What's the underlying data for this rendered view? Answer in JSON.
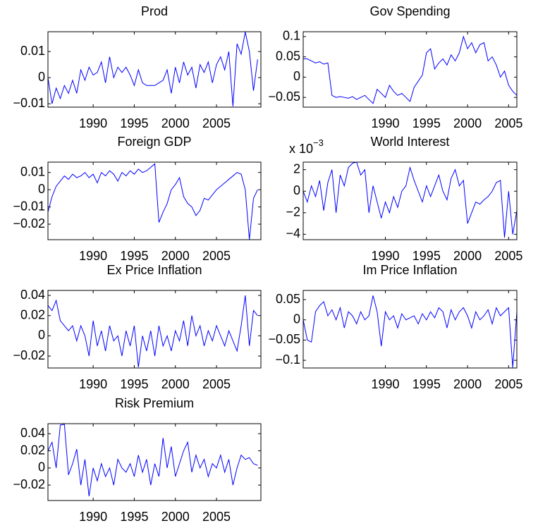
{
  "chart_data": [
    {
      "type": "line",
      "title": "Prod",
      "color": "#0000ff",
      "x": [
        1984.5,
        1985,
        1985.5,
        1986,
        1986.5,
        1987,
        1987.5,
        1988,
        1988.5,
        1989,
        1989.5,
        1990,
        1990.5,
        1991,
        1991.5,
        1992,
        1992.5,
        1993,
        1993.5,
        1994,
        1994.5,
        1995,
        1995.5,
        1996,
        1996.5,
        1997,
        1997.5,
        1998,
        1998.5,
        1999,
        1999.5,
        2000,
        2000.5,
        2001,
        2001.5,
        2002,
        2002.5,
        2003,
        2003.5,
        2004,
        2004.5,
        2005,
        2005.5,
        2006,
        2006.5,
        2007,
        2007.5,
        2008,
        2008.5,
        2009,
        2009.5,
        2010
      ],
      "values": [
        0.0,
        -0.01,
        -0.004,
        -0.008,
        -0.003,
        -0.006,
        -0.001,
        -0.006,
        0.003,
        -0.001,
        0.004,
        0.001,
        0.002,
        0.006,
        -0.002,
        0.008,
        0.0,
        0.004,
        0.002,
        0.004,
        0.001,
        -0.003,
        0.003,
        -0.002,
        -0.003,
        -0.003,
        -0.003,
        -0.002,
        -0.001,
        0.003,
        -0.006,
        0.004,
        -0.002,
        0.006,
        0.001,
        0.004,
        -0.004,
        0.005,
        0.002,
        0.006,
        -0.002,
        0.005,
        0.008,
        0.003,
        0.01,
        -0.011,
        0.013,
        0.009,
        0.0175,
        0.01,
        -0.005,
        0.007
      ],
      "xlim": [
        1984.5,
        2010.4
      ],
      "xticks": [
        1990,
        1995,
        2000,
        2005
      ],
      "ylim": [
        -0.0113,
        0.0176
      ],
      "yticks": [
        {
          "value": -0.01,
          "label": "−0.01"
        },
        0,
        0.01
      ]
    },
    {
      "type": "line",
      "title": "Gov Spending",
      "color": "#0000ff",
      "x": [
        1980,
        1980.5,
        1981,
        1981.5,
        1982,
        1982.5,
        1983,
        1983.5,
        1984,
        1984.5,
        1985,
        1985.5,
        1986,
        1986.5,
        1987,
        1987.5,
        1988,
        1988.5,
        1989,
        1989.5,
        1990,
        1990.5,
        1991,
        1991.5,
        1992,
        1992.5,
        1993,
        1993.5,
        1994,
        1994.5,
        1995,
        1995.5,
        1996,
        1996.5,
        1997,
        1997.5,
        1998,
        1998.5,
        1999,
        1999.5,
        2000,
        2000.5,
        2001,
        2001.5,
        2002,
        2002.5,
        2003,
        2003.5,
        2004,
        2004.5,
        2005,
        2005.5,
        2006
      ],
      "values": [
        0.045,
        0.045,
        0.04,
        0.035,
        0.038,
        0.032,
        0.035,
        -0.045,
        -0.05,
        -0.048,
        -0.05,
        -0.052,
        -0.048,
        -0.055,
        -0.05,
        -0.045,
        -0.055,
        -0.065,
        -0.03,
        -0.04,
        -0.05,
        -0.02,
        -0.035,
        -0.045,
        -0.04,
        -0.05,
        -0.06,
        -0.025,
        -0.01,
        0.005,
        0.06,
        0.07,
        0.02,
        0.035,
        0.045,
        0.03,
        0.055,
        0.04,
        0.06,
        0.1,
        0.07,
        0.085,
        0.06,
        0.08,
        0.085,
        0.04,
        0.05,
        0.03,
        0.0,
        0.015,
        -0.02,
        -0.035,
        -0.045
      ],
      "xlim": [
        1980,
        2006
      ],
      "xticks": [
        1990,
        1995,
        2000,
        2005
      ],
      "ylim": [
        -0.074,
        0.112
      ],
      "yticks": [
        {
          "value": -0.05,
          "label": "−0.05"
        },
        0,
        0.05,
        0.1
      ]
    },
    {
      "type": "line",
      "title": "Foreign GDP",
      "color": "#0000ff",
      "x": [
        1984.5,
        1985,
        1985.5,
        1986,
        1986.5,
        1987,
        1987.5,
        1988,
        1988.5,
        1989,
        1989.5,
        1990,
        1990.5,
        1991,
        1991.5,
        1992,
        1992.5,
        1993,
        1993.5,
        1994,
        1994.5,
        1995,
        1995.5,
        1996,
        1996.5,
        1997,
        1997.5,
        1998,
        1998.5,
        1999,
        1999.5,
        2000,
        2000.5,
        2001,
        2001.5,
        2002,
        2002.5,
        2003,
        2003.5,
        2004,
        2004.5,
        2005,
        2005.5,
        2006,
        2006.5,
        2007,
        2007.5,
        2008,
        2008.5,
        2009,
        2009.5,
        2010
      ],
      "values": [
        -0.013,
        -0.004,
        0.002,
        0.005,
        0.008,
        0.006,
        0.009,
        0.007,
        0.008,
        0.01,
        0.007,
        0.009,
        0.004,
        0.01,
        0.008,
        0.011,
        0.009,
        0.005,
        0.01,
        0.008,
        0.011,
        0.009,
        0.012,
        0.01,
        0.011,
        0.013,
        0.015,
        -0.019,
        -0.013,
        -0.008,
        0.0,
        0.003,
        0.007,
        -0.004,
        -0.008,
        -0.01,
        -0.015,
        -0.012,
        -0.005,
        -0.006,
        -0.003,
        0.0,
        0.002,
        0.004,
        0.006,
        0.008,
        0.01,
        0.009,
        0.0,
        -0.029,
        -0.005,
        0.0
      ],
      "xlim": [
        1984.5,
        2010.4
      ],
      "xticks": [
        1990,
        1995,
        2000,
        2005
      ],
      "ylim": [
        -0.029,
        0.016
      ],
      "yticks": [
        {
          "value": -0.02,
          "label": "−0.02"
        },
        {
          "value": -0.01,
          "label": "−0.01"
        },
        0,
        0.01
      ]
    },
    {
      "type": "line",
      "title": "World Interest",
      "color": "#0000ff",
      "y_exponent": {
        "base": "x 10",
        "power": "−3"
      },
      "x": [
        1980,
        1980.5,
        1981,
        1981.5,
        1982,
        1982.5,
        1983,
        1983.5,
        1984,
        1984.5,
        1985,
        1985.5,
        1986,
        1986.5,
        1987,
        1987.5,
        1988,
        1988.5,
        1989,
        1989.5,
        1990,
        1990.5,
        1991,
        1991.5,
        1992,
        1992.5,
        1993,
        1993.5,
        1994,
        1994.5,
        1995,
        1995.5,
        1996,
        1996.5,
        1997,
        1997.5,
        1998,
        1998.5,
        1999,
        1999.5,
        2000,
        2000.5,
        2001,
        2001.5,
        2002,
        2002.5,
        2003,
        2003.5,
        2004,
        2004.5,
        2005,
        2005.5,
        2006
      ],
      "values": [
        0.0,
        -1.0,
        0.5,
        -0.5,
        1.0,
        -1.8,
        0.8,
        2.0,
        -2.0,
        1.5,
        0.5,
        2.2,
        2.6,
        2.7,
        1.5,
        2.0,
        -2.0,
        0.5,
        -1.0,
        -2.5,
        -1.0,
        -2.0,
        -0.5,
        -1.5,
        0.0,
        0.5,
        2.2,
        1.0,
        0.0,
        -1.0,
        0.5,
        -0.5,
        0.5,
        1.5,
        0.0,
        -0.8,
        1.2,
        2.0,
        0.5,
        1.0,
        -3.0,
        -2.0,
        -1.0,
        -1.2,
        -0.8,
        -0.5,
        0.0,
        0.8,
        1.0,
        -4.3,
        0.0,
        -4.0,
        -1.8
      ],
      "xlim": [
        1980,
        2006
      ],
      "xticks": [
        1990,
        1995,
        2000,
        2005
      ],
      "ylim": [
        -4.5,
        2.7
      ],
      "yticks": [
        {
          "value": -4,
          "label": "−4"
        },
        {
          "value": -2,
          "label": "−2"
        },
        0,
        2
      ]
    },
    {
      "type": "line",
      "title": "Ex Price Inflation",
      "color": "#0000ff",
      "x": [
        1984.5,
        1985,
        1985.5,
        1986,
        1986.5,
        1987,
        1987.5,
        1988,
        1988.5,
        1989,
        1989.5,
        1990,
        1990.5,
        1991,
        1991.5,
        1992,
        1992.5,
        1993,
        1993.5,
        1994,
        1994.5,
        1995,
        1995.5,
        1996,
        1996.5,
        1997,
        1997.5,
        1998,
        1998.5,
        1999,
        1999.5,
        2000,
        2000.5,
        2001,
        2001.5,
        2002,
        2002.5,
        2003,
        2003.5,
        2004,
        2004.5,
        2005,
        2005.5,
        2006,
        2006.5,
        2007,
        2007.5,
        2008,
        2008.5,
        2009,
        2009.5,
        2010
      ],
      "values": [
        0.03,
        0.025,
        0.035,
        0.015,
        0.01,
        0.005,
        0.01,
        -0.005,
        0.01,
        0.0,
        -0.02,
        0.015,
        -0.01,
        0.005,
        -0.015,
        0.01,
        -0.005,
        0.0,
        -0.02,
        0.005,
        -0.01,
        0.01,
        -0.031,
        0.0,
        -0.015,
        0.005,
        -0.02,
        0.01,
        -0.01,
        0.0,
        -0.015,
        0.005,
        -0.005,
        0.015,
        -0.01,
        0.02,
        0.0,
        0.01,
        -0.01,
        0.005,
        -0.005,
        0.01,
        0.0,
        -0.01,
        0.005,
        -0.005,
        -0.015,
        0.01,
        0.04,
        -0.01,
        0.025,
        0.02
      ],
      "xlim": [
        1984.5,
        2010.4
      ],
      "xticks": [
        1990,
        1995,
        2000,
        2005
      ],
      "ylim": [
        -0.0318,
        0.0449
      ],
      "yticks": [
        {
          "value": -0.02,
          "label": "−0.02"
        },
        0,
        0.02,
        0.04
      ]
    },
    {
      "type": "line",
      "title": "Im Price Inflation",
      "color": "#0000ff",
      "x": [
        1980,
        1980.5,
        1981,
        1981.5,
        1982,
        1982.5,
        1983,
        1983.5,
        1984,
        1984.5,
        1985,
        1985.5,
        1986,
        1986.5,
        1987,
        1987.5,
        1988,
        1988.5,
        1989,
        1989.5,
        1990,
        1990.5,
        1991,
        1991.5,
        1992,
        1992.5,
        1993,
        1993.5,
        1994,
        1994.5,
        1995,
        1995.5,
        1996,
        1996.5,
        1997,
        1997.5,
        1998,
        1998.5,
        1999,
        1999.5,
        2000,
        2000.5,
        2001,
        2001.5,
        2002,
        2002.5,
        2003,
        2003.5,
        2004,
        2004.5,
        2005,
        2005.5,
        2006
      ],
      "values": [
        0.0,
        -0.05,
        -0.055,
        0.02,
        0.035,
        0.045,
        0.01,
        0.025,
        0.0,
        0.03,
        -0.02,
        0.02,
        0.01,
        -0.01,
        0.02,
        0.0,
        0.01,
        0.06,
        0.02,
        -0.065,
        0.02,
        0.0,
        0.01,
        -0.02,
        0.015,
        0.0,
        0.005,
        0.01,
        -0.01,
        0.015,
        0.0,
        0.02,
        0.005,
        0.03,
        0.02,
        -0.02,
        0.025,
        0.0,
        0.02,
        0.03,
        0.01,
        -0.02,
        0.02,
        0.0,
        0.01,
        0.025,
        -0.01,
        0.03,
        0.01,
        0.02,
        0.03,
        -0.118,
        0.02
      ],
      "xlim": [
        1980,
        2006
      ],
      "xticks": [
        1990,
        1995,
        2000,
        2005
      ],
      "ylim": [
        -0.119,
        0.0727
      ],
      "yticks": [
        {
          "value": -0.1,
          "label": "−0.1"
        },
        {
          "value": -0.05,
          "label": "−0.05"
        },
        0,
        0.05
      ]
    },
    {
      "type": "line",
      "title": "Risk Premium",
      "color": "#0000ff",
      "x": [
        1984.5,
        1985,
        1985.5,
        1986,
        1986.5,
        1987,
        1987.5,
        1988,
        1988.5,
        1989,
        1989.5,
        1990,
        1990.5,
        1991,
        1991.5,
        1992,
        1992.5,
        1993,
        1993.5,
        1994,
        1994.5,
        1995,
        1995.5,
        1996,
        1996.5,
        1997,
        1997.5,
        1998,
        1998.5,
        1999,
        1999.5,
        2000,
        2000.5,
        2001,
        2001.5,
        2002,
        2002.5,
        2003,
        2003.5,
        2004,
        2004.5,
        2005,
        2005.5,
        2006,
        2006.5,
        2007,
        2007.5,
        2008,
        2008.5,
        2009,
        2009.5,
        2010
      ],
      "values": [
        0.02,
        0.03,
        0.0,
        0.05,
        0.051,
        -0.008,
        0.005,
        0.022,
        -0.02,
        0.01,
        -0.033,
        0.0,
        -0.015,
        0.005,
        -0.01,
        0.0,
        -0.02,
        0.01,
        0.0,
        -0.005,
        0.005,
        -0.01,
        0.015,
        -0.005,
        0.01,
        -0.02,
        0.005,
        -0.01,
        0.035,
        0.0,
        0.025,
        -0.01,
        0.005,
        0.02,
        0.03,
        -0.005,
        0.015,
        0.0,
        0.01,
        -0.01,
        0.005,
        0.0,
        0.015,
        -0.005,
        0.01,
        -0.02,
        0.0,
        0.015,
        0.01,
        0.012,
        0.005,
        0.003
      ],
      "xlim": [
        1984.5,
        2010.4
      ],
      "xticks": [
        1990,
        1995,
        2000,
        2005
      ],
      "ylim": [
        -0.038,
        0.0517
      ],
      "yticks": [
        {
          "value": -0.02,
          "label": "−0.02"
        },
        0,
        0.02,
        0.04
      ]
    }
  ]
}
